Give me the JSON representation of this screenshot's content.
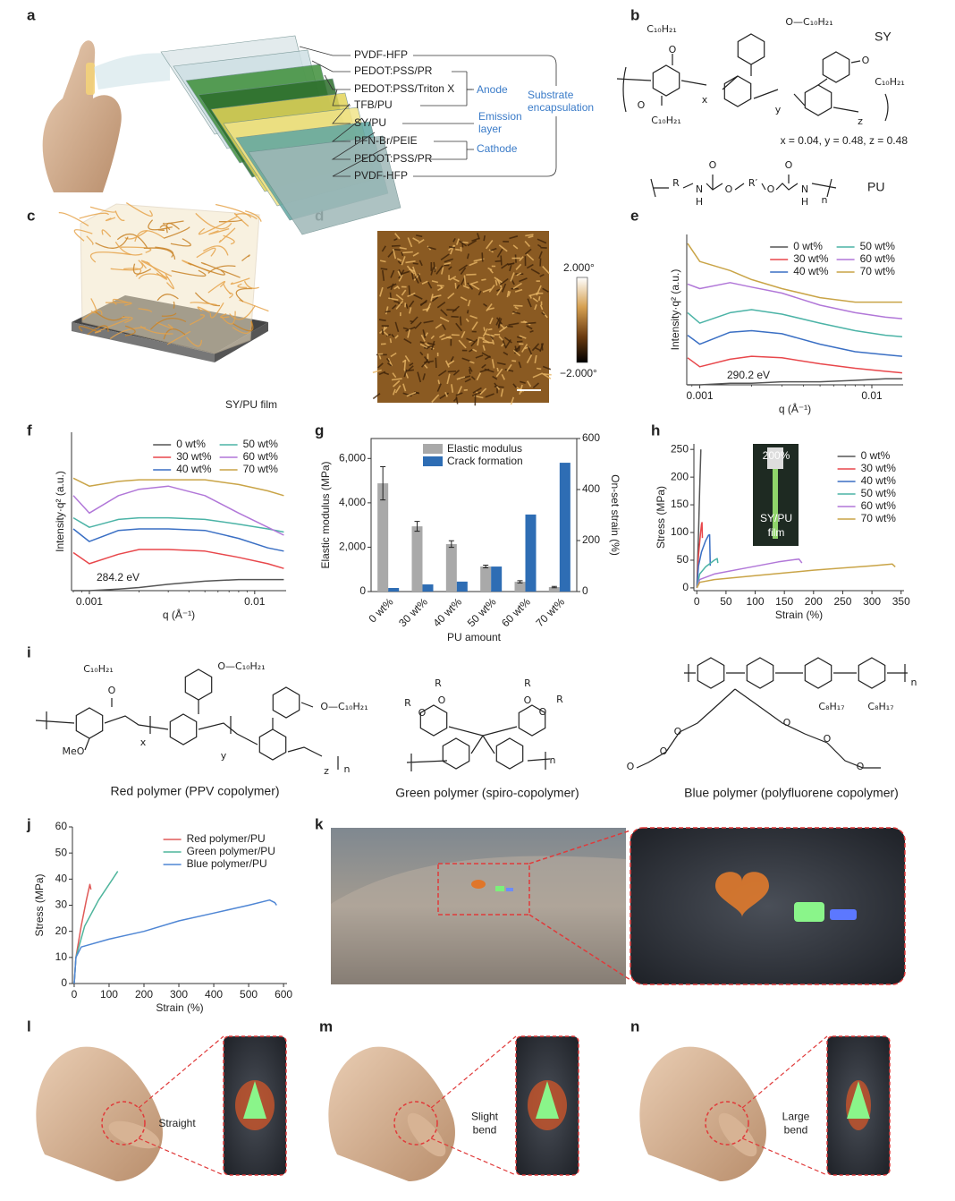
{
  "panel_labels": [
    "a",
    "b",
    "c",
    "d",
    "e",
    "f",
    "g",
    "h",
    "i",
    "j",
    "k",
    "l",
    "m",
    "n"
  ],
  "a": {
    "layers": [
      "PVDF-HFP",
      "PEDOT:PSS/PR",
      "PEDOT:PSS/Triton X",
      "TFB/PU",
      "SY/PU",
      "PFN-Br/PEIE",
      "PEDOT:PSS/PR",
      "PVDF-HFP"
    ],
    "anode": "Anode",
    "emission": [
      "Emission",
      "layer"
    ],
    "cathode": "Cathode",
    "substrate": [
      "Substrate",
      "encapsulation"
    ]
  },
  "b": {
    "label_sy": "SY",
    "label_pu": "PU",
    "ratio": "x = 0.04, y = 0.48, z = 0.48",
    "sy_atoms": [
      "C₁₀H₂₁",
      "O",
      "O—C₁₀H₂₁",
      "O",
      "C₁₀H₂₁",
      "x",
      "y",
      "O",
      "C₁₀H₂₁",
      "z"
    ],
    "pu_atoms": [
      "R",
      "N",
      "H",
      "O",
      "O",
      "R′",
      "O",
      "O",
      "N",
      "H",
      "n"
    ]
  },
  "c": {
    "caption": "SY/PU film"
  },
  "d": {
    "scale_max": "2.000°",
    "scale_min": "−2.000°"
  },
  "i": {
    "red_atoms": [
      "C₁₀H₂₁",
      "O",
      "O—C₁₀H₂₁",
      "MeO",
      "x",
      "y",
      "O—C₁₀H₂₁",
      "z",
      "n"
    ],
    "green_atoms": [
      "R",
      "O",
      "R",
      "O",
      "R",
      "O",
      "O",
      "R",
      "n"
    ],
    "blue_atoms": [
      "n",
      "C₈H₁₇",
      "C₈H₁₇",
      "O",
      "O",
      "O",
      "O",
      "O",
      "O"
    ],
    "captions": [
      "Red polymer (PPV copolymer)",
      "Green polymer (spiro-copolymer)",
      "Blue polymer (polyfluorene copolymer)"
    ]
  },
  "l": {
    "caption": [
      "Straight"
    ]
  },
  "m": {
    "caption": [
      "Slight",
      "bend"
    ]
  },
  "n": {
    "caption": [
      "Large",
      "bend"
    ]
  },
  "chart_data": [
    {
      "type": "line",
      "xscale": "log",
      "xlabel": "q (Å⁻¹)",
      "ylabel": "Intensity·q² (a.u.)",
      "annotation": "290.2 eV",
      "xlim": [
        0.00084,
        0.0152
      ],
      "ylim": [
        0,
        10
      ],
      "xticks": [
        0.001,
        0.01
      ],
      "legend": "upper right",
      "legend_columns": 2,
      "x": [
        0.00085,
        0.001,
        0.0015,
        0.002,
        0.003,
        0.005,
        0.008,
        0.012,
        0.015
      ],
      "series": [
        {
          "name": "0 wt%",
          "color": "#555555",
          "values": [
            0,
            0,
            0.1,
            0.1,
            0.2,
            0.2,
            0.3,
            0.4,
            0.4
          ]
        },
        {
          "name": "30 wt%",
          "color": "#e8474b",
          "values": [
            1.8,
            1.2,
            1.7,
            1.9,
            1.8,
            1.4,
            1.1,
            0.9,
            0.8
          ]
        },
        {
          "name": "40 wt%",
          "color": "#3a6fc4",
          "values": [
            3.3,
            2.7,
            3.5,
            3.6,
            3.4,
            2.7,
            2.2,
            2.0,
            1.9
          ]
        },
        {
          "name": "50 wt%",
          "color": "#4bb3a6",
          "values": [
            4.8,
            4.1,
            4.8,
            5.0,
            4.7,
            4.1,
            3.6,
            3.3,
            3.2
          ]
        },
        {
          "name": "60 wt%",
          "color": "#b177d8",
          "values": [
            6.7,
            6.4,
            6.8,
            6.5,
            6.1,
            5.3,
            4.8,
            4.5,
            4.4
          ]
        },
        {
          "name": "70 wt%",
          "color": "#c9a447",
          "values": [
            9.4,
            8.2,
            7.6,
            7.0,
            6.4,
            5.8,
            5.5,
            5.5,
            5.5
          ]
        }
      ]
    },
    {
      "type": "line",
      "xscale": "log",
      "xlabel": "q (Å⁻¹)",
      "ylabel": "Intensity·q² (a.u.)",
      "annotation": "284.2 eV",
      "xlim": [
        0.00078,
        0.0155
      ],
      "ylim": [
        0,
        10
      ],
      "xticks": [
        0.001,
        0.01
      ],
      "legend": "upper right",
      "legend_columns": 2,
      "x": [
        0.0008,
        0.001,
        0.0015,
        0.002,
        0.003,
        0.005,
        0.008,
        0.012,
        0.015
      ],
      "series": [
        {
          "name": "0 wt%",
          "color": "#555555",
          "values": [
            0,
            0,
            0.1,
            0.2,
            0.4,
            0.6,
            0.7,
            0.7,
            0.7
          ]
        },
        {
          "name": "30 wt%",
          "color": "#e8474b",
          "values": [
            2.4,
            1.7,
            2.3,
            2.6,
            2.6,
            2.5,
            2.1,
            1.7,
            1.4
          ]
        },
        {
          "name": "40 wt%",
          "color": "#3a6fc4",
          "values": [
            3.9,
            3.1,
            3.8,
            3.9,
            3.9,
            3.8,
            3.3,
            2.7,
            2.5
          ]
        },
        {
          "name": "50 wt%",
          "color": "#4bb3a6",
          "values": [
            4.6,
            4.0,
            4.5,
            4.6,
            4.6,
            4.5,
            4.2,
            3.9,
            3.7
          ]
        },
        {
          "name": "60 wt%",
          "color": "#b177d8",
          "values": [
            6.0,
            4.9,
            6.0,
            6.4,
            6.6,
            6.0,
            4.9,
            4.0,
            3.5
          ]
        },
        {
          "name": "70 wt%",
          "color": "#c9a447",
          "values": [
            7.1,
            6.6,
            6.9,
            7.0,
            7.0,
            7.0,
            6.7,
            6.3,
            6.0
          ]
        }
      ]
    },
    {
      "type": "bar",
      "xlabel": "PU amount",
      "ylabel": "Elastic modulus (MPa)",
      "y2label": "On-set strain (%)",
      "legend": "upper center",
      "categories": [
        "0 wt%",
        "30 wt%",
        "40 wt%",
        "50 wt%",
        "60 wt%",
        "70 wt%"
      ],
      "ylim": [
        0,
        6900
      ],
      "yticks": [
        0,
        {
          "value": 2000,
          "label": "2,000"
        },
        {
          "value": 4000,
          "label": "4,000"
        },
        {
          "value": 6000,
          "label": "6,000"
        }
      ],
      "y2lim": [
        0,
        600
      ],
      "y2ticks": [
        0,
        200,
        400,
        600
      ],
      "series": [
        {
          "name": "Elastic modulus",
          "color": "#a9a9a9",
          "values": [
            4880,
            2940,
            2140,
            1130,
            440,
            200
          ],
          "errors": [
            750,
            220,
            150,
            60,
            50,
            30
          ]
        },
        {
          "name": "Crack formation",
          "color": "#2e6db4",
          "axis": "y2",
          "values": [
            14,
            28,
            39,
            98,
            302,
            505
          ]
        }
      ]
    },
    {
      "type": "line",
      "xlabel": "Strain (%)",
      "ylabel": "Stress (MPa)",
      "xlim": [
        -5,
        355
      ],
      "ylim": [
        -5,
        260
      ],
      "xticks": [
        0,
        50,
        100,
        150,
        200,
        250,
        300,
        350
      ],
      "yticks": [
        0,
        50,
        100,
        150,
        200,
        250
      ],
      "legend": "upper right",
      "legend_columns": 1,
      "inset_labels": [
        "200%",
        "SY/PU",
        "film"
      ],
      "series": [
        {
          "name": "0 wt%",
          "color": "#555555",
          "x": [
            0,
            3,
            5,
            7
          ],
          "values": [
            0,
            100,
            180,
            250
          ]
        },
        {
          "name": "30 wt%",
          "color": "#e8474b",
          "x": [
            0,
            3,
            6,
            8,
            9,
            9.5
          ],
          "values": [
            0,
            60,
            95,
            115,
            118,
            90
          ]
        },
        {
          "name": "40 wt%",
          "color": "#3a6fc4",
          "x": [
            0,
            3,
            8,
            15,
            20,
            22,
            23
          ],
          "values": [
            0,
            40,
            65,
            85,
            95,
            96,
            40
          ]
        },
        {
          "name": "50 wt%",
          "color": "#4bb3a6",
          "x": [
            0,
            5,
            15,
            30,
            35,
            36
          ],
          "values": [
            0,
            25,
            38,
            50,
            53,
            45
          ]
        },
        {
          "name": "60 wt%",
          "color": "#b177d8",
          "x": [
            0,
            5,
            30,
            80,
            140,
            175,
            180
          ],
          "values": [
            0,
            15,
            25,
            35,
            47,
            52,
            45
          ]
        },
        {
          "name": "70 wt%",
          "color": "#c9a447",
          "x": [
            0,
            5,
            30,
            100,
            200,
            300,
            335,
            340
          ],
          "values": [
            0,
            10,
            15,
            22,
            32,
            40,
            43,
            38
          ]
        }
      ]
    },
    {
      "type": "line",
      "xlabel": "Strain (%)",
      "ylabel": "Stress (MPa)",
      "xlim": [
        -5,
        610
      ],
      "ylim": [
        0,
        60
      ],
      "xticks": [
        0,
        100,
        200,
        300,
        400,
        500,
        600
      ],
      "yticks": [
        0,
        10,
        20,
        30,
        40,
        50,
        60
      ],
      "legend": "upper right",
      "legend_columns": 1,
      "series": [
        {
          "name": "Red polymer/PU",
          "color": "#e05a58",
          "x": [
            0,
            5,
            20,
            35,
            45,
            48
          ],
          "values": [
            0,
            10,
            22,
            32,
            38,
            36
          ]
        },
        {
          "name": "Green polymer/PU",
          "color": "#4fb59c",
          "x": [
            0,
            5,
            30,
            70,
            110,
            125
          ],
          "values": [
            0,
            10,
            22,
            32,
            40,
            43
          ]
        },
        {
          "name": "Blue polymer/PU",
          "color": "#4f86d4",
          "x": [
            0,
            5,
            20,
            100,
            200,
            300,
            400,
            500,
            560,
            575,
            580
          ],
          "values": [
            0,
            10,
            14,
            17,
            20,
            24,
            27,
            30,
            32,
            31,
            30
          ]
        }
      ]
    }
  ]
}
